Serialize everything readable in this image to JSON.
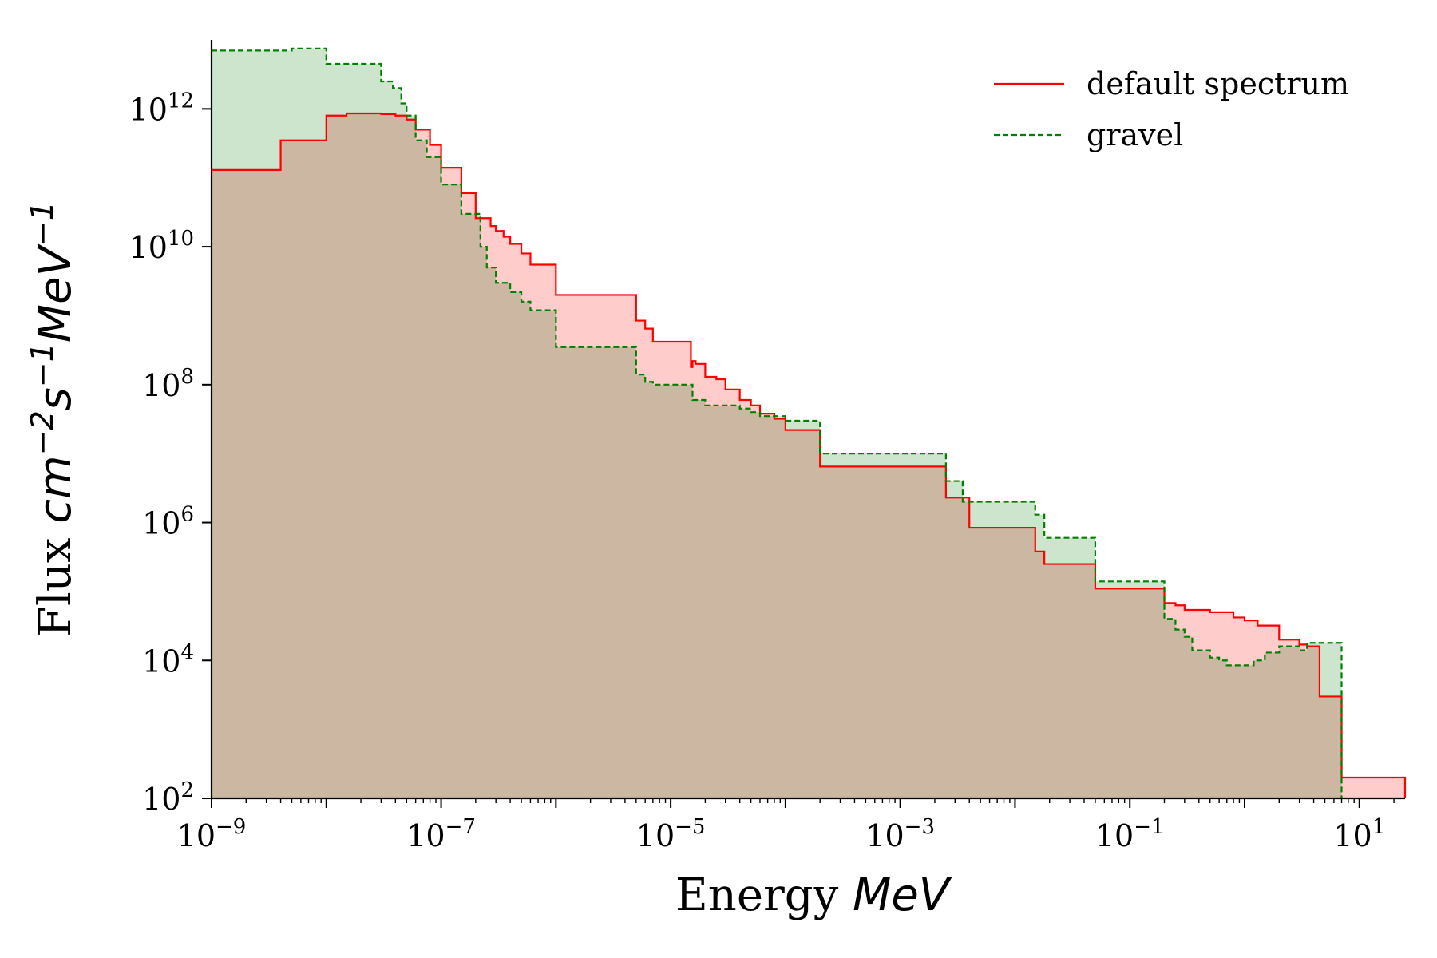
{
  "chart_data": {
    "type": "area",
    "x_scale": "log",
    "y_scale": "log",
    "xlim": [
      1e-09,
      25
    ],
    "ylim": [
      100,
      10000000000000.0
    ],
    "xlabel": {
      "text": "Energy ",
      "unit": "MeV"
    },
    "ylabel": {
      "text": "Flux ",
      "unit": "cm",
      "unit_parts": [
        "cm",
        "−2",
        "s",
        "−1",
        "MeV",
        "−1"
      ]
    },
    "x_ticks": [
      {
        "value": 1e-09,
        "base": "10",
        "exp": "−9"
      },
      {
        "value": 1e-07,
        "base": "10",
        "exp": "−7"
      },
      {
        "value": 1e-05,
        "base": "10",
        "exp": "−5"
      },
      {
        "value": 0.001,
        "base": "10",
        "exp": "−3"
      },
      {
        "value": 0.1,
        "base": "10",
        "exp": "−1"
      },
      {
        "value": 10,
        "base": "10",
        "exp": "1"
      }
    ],
    "y_ticks": [
      {
        "value": 100,
        "base": "10",
        "exp": "2"
      },
      {
        "value": 10000.0,
        "base": "10",
        "exp": "4"
      },
      {
        "value": 1000000.0,
        "base": "10",
        "exp": "6"
      },
      {
        "value": 100000000.0,
        "base": "10",
        "exp": "8"
      },
      {
        "value": 10000000000.0,
        "base": "10",
        "exp": "10"
      },
      {
        "value": 1000000000000.0,
        "base": "10",
        "exp": "12"
      }
    ],
    "legend_position": "top-right",
    "series": [
      {
        "name": "default spectrum",
        "color": "#ff0000",
        "fill": "#ffcccc",
        "line_style": "solid",
        "x": [
          1e-09,
          4e-09,
          1e-08,
          1.5e-08,
          3e-08,
          4e-08,
          5e-08,
          6e-08,
          8e-08,
          1e-07,
          1.5e-07,
          2e-07,
          2.7e-07,
          3e-07,
          3.5e-07,
          4e-07,
          5e-07,
          6e-07,
          1e-06,
          5e-06,
          6e-06,
          7e-06,
          1.5e-05,
          1.55e-05,
          1.65e-05,
          2e-05,
          2.5e-05,
          3e-05,
          4e-05,
          5e-05,
          6e-05,
          8e-05,
          0.0001,
          0.00012,
          0.0002,
          0.0025,
          0.004,
          0.015,
          0.018,
          0.02,
          0.05,
          0.2,
          0.25,
          0.3,
          0.5,
          0.8,
          1.0,
          1.3,
          2.0,
          3.0,
          3.5,
          4.5,
          7.0
        ],
        "y": [
          130000000000.0,
          350000000000.0,
          800000000000.0,
          860000000000.0,
          840000000000.0,
          800000000000.0,
          700000000000.0,
          500000000000.0,
          300000000000.0,
          140000000000.0,
          60000000000.0,
          26000000000.0,
          20000000000.0,
          17000000000.0,
          14000000000.0,
          11000000000.0,
          8000000000.0,
          5500000000.0,
          2000000000.0,
          850000000.0,
          650000000.0,
          420000000.0,
          180000000.0,
          220000000.0,
          200000000.0,
          130000000.0,
          120000000.0,
          85000000.0,
          60000000.0,
          50000000.0,
          38000000.0,
          32000000.0,
          22000000.0,
          22000000.0,
          6500000.0,
          2300000.0,
          840000.0,
          380000.0,
          250000.0,
          250000.0,
          110000.0,
          68000.0,
          63000.0,
          54000.0,
          50000.0,
          42000.0,
          38000.0,
          32000.0,
          20000.0,
          17000.0,
          16000.0,
          3000.0,
          200
        ],
        "x_end": 25
      },
      {
        "name": "gravel",
        "color": "#008000",
        "fill": "#cce5cc",
        "line_style": "dashed",
        "x": [
          1e-09,
          5e-09,
          1e-08,
          1.7e-08,
          3e-08,
          3.8e-08,
          4.5e-08,
          5e-08,
          6e-08,
          7.5e-08,
          1e-07,
          1.5e-07,
          2.2e-07,
          2.5e-07,
          3e-07,
          4e-07,
          5e-07,
          6e-07,
          1e-06,
          5e-06,
          6e-06,
          7e-06,
          1e-05,
          1.2e-05,
          1.55e-05,
          1.6e-05,
          2e-05,
          2.5e-05,
          4e-05,
          5e-05,
          6e-05,
          0.0001,
          0.00012,
          0.0002,
          0.0025,
          0.0035,
          0.004,
          0.015,
          0.018,
          0.02,
          0.05,
          0.2,
          0.25,
          0.3,
          0.35,
          0.4,
          0.5,
          0.6,
          0.7,
          1.0,
          1.2,
          1.5,
          2.0,
          3.0,
          3.5,
          7.0
        ],
        "y": [
          7000000000000.0,
          7500000000000.0,
          4500000000000.0,
          4500000000000.0,
          2500000000000.0,
          2000000000000.0,
          1200000000000.0,
          800000000000.0,
          350000000000.0,
          200000000000.0,
          80000000000.0,
          30000000000.0,
          10000000000.0,
          5000000000.0,
          3000000000.0,
          2200000000.0,
          1600000000.0,
          1200000000.0,
          350000000.0,
          140000000.0,
          110000000.0,
          100000000.0,
          100000000.0,
          100000000.0,
          60000000.0,
          60000000.0,
          50000000.0,
          50000000.0,
          45000000.0,
          40000000.0,
          35000000.0,
          30000000.0,
          30000000.0,
          10000000.0,
          4000000.0,
          2000000.0,
          2000000.0,
          1300000.0,
          600000.0,
          600000.0,
          140000.0,
          40000.0,
          28000.0,
          22000.0,
          14000.0,
          14000.0,
          11000.0,
          10000.0,
          8500.0,
          8500.0,
          10000.0,
          13000.0,
          16000.0,
          14000.0,
          18000.0,
          100
        ],
        "x_end": 7.0
      }
    ]
  }
}
